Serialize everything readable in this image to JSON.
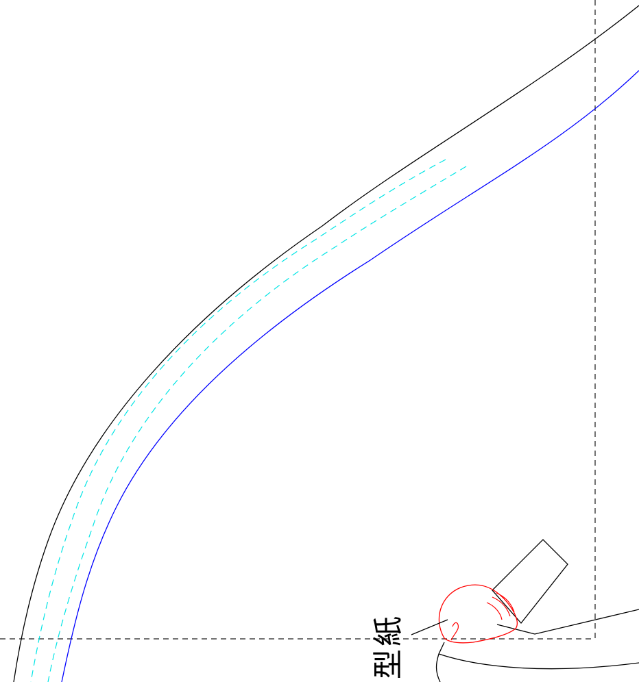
{
  "drawing": {
    "callout_label": "型紙",
    "colors": {
      "outline": "#000000",
      "seam_line": "#0000ff",
      "stitch_line": "#00e5e5",
      "fold_line": "#444444",
      "hand_sketch": "#ff0000"
    }
  }
}
